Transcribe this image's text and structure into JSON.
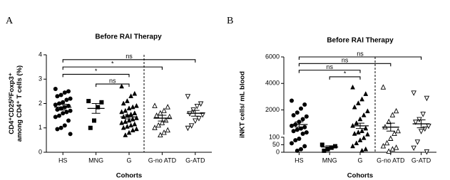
{
  "chart_data": [
    {
      "type": "dotplot",
      "panel": "A",
      "title": "Before RAI Therapy",
      "ylabel": [
        "CD4⁺CD25ʰⁱFoxp3⁺",
        "among CD4⁺ T cells (%)"
      ],
      "xlabel": "Cohorts",
      "ylim": [
        0,
        4
      ],
      "yticks": [
        0,
        1,
        2,
        3,
        4
      ],
      "groups": [
        {
          "name": "HS",
          "marker": "circle",
          "mean": 1.85,
          "sem": 0.12,
          "values": [
            2.6,
            2.5,
            2.45,
            2.35,
            2.3,
            2.2,
            2.15,
            2.05,
            2.0,
            1.95,
            1.9,
            1.85,
            1.8,
            1.75,
            1.7,
            1.65,
            1.6,
            1.5,
            1.45,
            1.3,
            1.1,
            1.0,
            0.95,
            0.75
          ]
        },
        {
          "name": "MNG",
          "marker": "square",
          "mean": 1.8,
          "sem": 0.2,
          "values": [
            2.1,
            2.05,
            1.85,
            1.3,
            1.0
          ]
        },
        {
          "name": "G",
          "marker": "triangle",
          "mean": 1.45,
          "sem": 0.08,
          "values": [
            2.7,
            2.4,
            2.3,
            2.1,
            2.0,
            1.9,
            1.85,
            1.8,
            1.7,
            1.65,
            1.6,
            1.55,
            1.5,
            1.45,
            1.4,
            1.35,
            1.3,
            1.25,
            1.2,
            1.15,
            1.1,
            1.05,
            1.0,
            0.95,
            0.9,
            0.8,
            0.7
          ]
        },
        {
          "name": "G-no ATD",
          "marker": "triangle-open",
          "mean": 1.4,
          "sem": 0.12,
          "values": [
            1.9,
            1.85,
            1.7,
            1.6,
            1.5,
            1.45,
            1.3,
            1.2,
            1.1,
            1.0,
            0.9,
            0.8,
            0.7
          ]
        },
        {
          "name": "G-ATD",
          "marker": "triangle-down-open",
          "mean": 1.6,
          "sem": 0.12,
          "values": [
            2.3,
            2.0,
            1.9,
            1.75,
            1.6,
            1.55,
            1.4,
            1.3,
            1.1,
            1.0
          ]
        }
      ],
      "brackets": [
        {
          "from": 0,
          "to": 4,
          "y": 3.8,
          "label": "ns"
        },
        {
          "from": 0,
          "to": 3,
          "y": 3.5,
          "label": "*"
        },
        {
          "from": 0,
          "to": 2,
          "y": 3.2,
          "label": "*"
        },
        {
          "from": 1,
          "to": 2,
          "y": 2.8,
          "label": "ns"
        }
      ]
    },
    {
      "type": "dotplot",
      "panel": "B",
      "title": "Before RAI Therapy",
      "ylabel": [
        "iNKT cells/ mL blood"
      ],
      "xlabel": "Cohorts",
      "ylim": [
        0,
        6000
      ],
      "y_segments": [
        [
          0,
          100
        ],
        [
          100,
          6000
        ]
      ],
      "yticks": [
        0,
        50,
        100,
        2000,
        4000,
        6000
      ],
      "groups": [
        {
          "name": "HS",
          "marker": "circle",
          "mean": 900,
          "sem": 200,
          "values": [
            2700,
            2400,
            2100,
            1800,
            1600,
            1500,
            1300,
            1100,
            900,
            800,
            700,
            600,
            500,
            400,
            300,
            200,
            90,
            80,
            60,
            40,
            20,
            10
          ]
        },
        {
          "name": "MNG",
          "marker": "square",
          "mean": 35,
          "sem": 8,
          "values": [
            50,
            40,
            30,
            20,
            10
          ]
        },
        {
          "name": "G",
          "marker": "triangle",
          "mean": 800,
          "sem": 200,
          "values": [
            3700,
            3200,
            2800,
            2500,
            2200,
            1900,
            1600,
            1300,
            1000,
            800,
            600,
            400,
            300,
            200,
            150,
            95,
            80,
            60,
            40,
            20,
            10
          ]
        },
        {
          "name": "G-no ATD",
          "marker": "triangle-open",
          "mean": 700,
          "sem": 300,
          "values": [
            3700,
            1900,
            1600,
            1100,
            700,
            400,
            200,
            90,
            60,
            40,
            30,
            20,
            5
          ]
        },
        {
          "name": "G-ATD",
          "marker": "triangle-down-open",
          "mean": 950,
          "sem": 300,
          "values": [
            3300,
            2900,
            1700,
            1300,
            1100,
            800,
            600,
            400,
            70,
            30,
            5
          ]
        }
      ],
      "brackets": [
        {
          "from": 0,
          "to": 4,
          "y": 6000,
          "label": "ns"
        },
        {
          "from": 0,
          "to": 3,
          "y": 5500,
          "label": "ns"
        },
        {
          "from": 0,
          "to": 2,
          "y": 5000,
          "label": "ns"
        },
        {
          "from": 1,
          "to": 2,
          "y": 4500,
          "label": "*"
        }
      ]
    }
  ]
}
